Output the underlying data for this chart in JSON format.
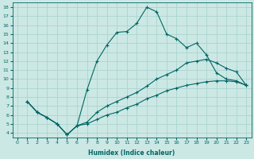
{
  "background_color": "#cce8e4",
  "grid_color": "#aad4d0",
  "line_color": "#006666",
  "xlabel": "Humidex (Indice chaleur)",
  "xlim": [
    -0.5,
    23.5
  ],
  "ylim": [
    3.5,
    18.5
  ],
  "xticks": [
    0,
    1,
    2,
    3,
    4,
    5,
    6,
    7,
    8,
    9,
    10,
    11,
    12,
    13,
    14,
    15,
    16,
    17,
    18,
    19,
    20,
    21,
    22,
    23
  ],
  "yticks": [
    4,
    5,
    6,
    7,
    8,
    9,
    10,
    11,
    12,
    13,
    14,
    15,
    16,
    17,
    18
  ],
  "line1_x": [
    1,
    2,
    3,
    4,
    5,
    6,
    7,
    8,
    9,
    10,
    11,
    12,
    13,
    14,
    15,
    16,
    17,
    18,
    19,
    20,
    21,
    22,
    23
  ],
  "line1_y": [
    7.5,
    6.3,
    5.7,
    5.0,
    3.8,
    4.8,
    8.8,
    12.0,
    13.8,
    15.2,
    15.3,
    16.2,
    18.0,
    17.5,
    15.0,
    14.5,
    13.5,
    14.0,
    12.7,
    10.7,
    10.0,
    9.8,
    9.3
  ],
  "line2_x": [
    1,
    2,
    3,
    4,
    5,
    6,
    7,
    8,
    9,
    10,
    11,
    12,
    13,
    14,
    15,
    16,
    17,
    18,
    19,
    20,
    21,
    22,
    23
  ],
  "line2_y": [
    7.5,
    6.3,
    5.7,
    5.0,
    3.8,
    4.8,
    5.2,
    6.3,
    7.0,
    7.5,
    8.0,
    8.5,
    9.2,
    10.0,
    10.5,
    11.0,
    11.8,
    12.0,
    12.2,
    11.8,
    11.2,
    10.8,
    9.3
  ],
  "line3_x": [
    1,
    2,
    3,
    4,
    5,
    6,
    7,
    8,
    9,
    10,
    11,
    12,
    13,
    14,
    15,
    16,
    17,
    18,
    19,
    20,
    21,
    22,
    23
  ],
  "line3_y": [
    7.5,
    6.3,
    5.7,
    5.0,
    3.8,
    4.8,
    5.0,
    5.5,
    6.0,
    6.3,
    6.8,
    7.2,
    7.8,
    8.2,
    8.7,
    9.0,
    9.3,
    9.5,
    9.7,
    9.8,
    9.8,
    9.7,
    9.3
  ]
}
